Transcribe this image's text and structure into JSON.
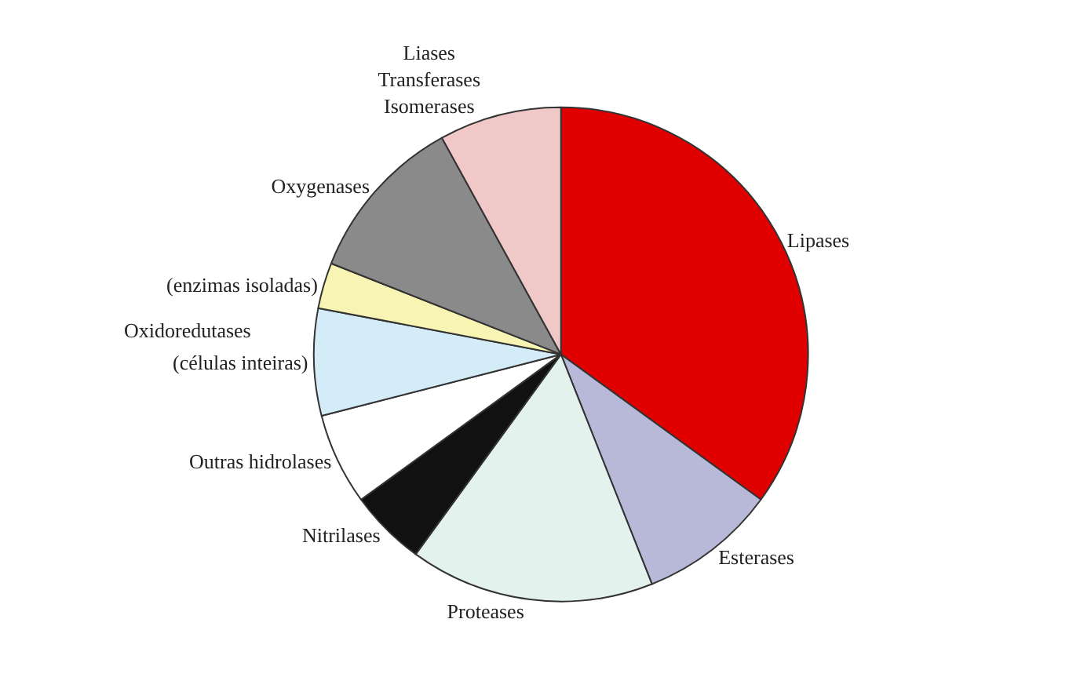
{
  "chart_data": {
    "type": "pie",
    "categories": [
      "Lipases",
      "Esterases",
      "Proteases",
      "Nitrilases",
      "Outras hidrolases",
      "(células inteiras)",
      "(enzimas isoladas)",
      "Oxygenases",
      "Liases\nTransferases\nIsomerases"
    ],
    "values": [
      35,
      9,
      16,
      5,
      6,
      7,
      3,
      11,
      8
    ],
    "colors": [
      "#e00000",
      "#b8b8d8",
      "#e4f2ee",
      "#111111",
      "#ffffff",
      "#d4ecf8",
      "#f8f4b4",
      "#8a8a8a",
      "#f0c8c8"
    ],
    "annotations": [
      "Oxidoredutases"
    ],
    "legend": false
  }
}
